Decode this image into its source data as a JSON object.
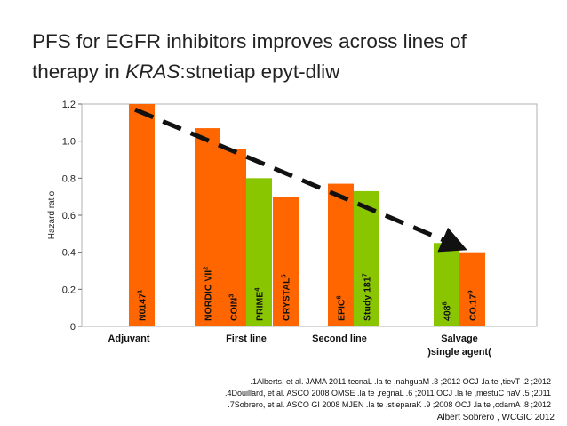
{
  "slide": {
    "title_line1": "PFS for EGFR inhibitors improves across lines of",
    "title_line2_prefix": "therapy in ",
    "title_line2_italic": "KRAS",
    "title_line2_suffix": ":stnetiap epyt-dliw",
    "references": [
      ".1Alberts, et al. JAMA  2011 tecnaL .la te ,nahguaM .3 ;2012 OCJ .la te ,tievT .2 ;2012",
      ".4Douillard, et al. ASCO  2008 OMSE .la te ,regnaL .6 ;2011 OCJ .la te ,mestuC naV .5 ;2011",
      ".7Sobrero, et al. ASCO GI 2008 MJEN .la te ,stieparaK .9 ;2008 OCJ .la te ,odamA .8 ;2012"
    ],
    "credit": "Albert Sobrero , WCGIC 2012"
  },
  "chart_data": {
    "type": "bar",
    "ylabel": "Hazard ratio",
    "ylim": [
      0,
      1.2
    ],
    "yticks": [
      "0",
      "0.2",
      "0.4",
      "0.6",
      "0.8",
      "1.0",
      "1.2"
    ],
    "groups": [
      "Adjuvant",
      "First line",
      "Second line",
      "Salvage\n)single agent("
    ],
    "colors": {
      "chemo_combo": "#ff6600",
      "single_agent": "#8ac600",
      "arrow": "#111111"
    },
    "bars": [
      {
        "label": "N0147",
        "sup": "1",
        "value": 1.2,
        "group": 0,
        "color": "#ff6600"
      },
      {
        "label": "NORDIC VII",
        "sup": "2",
        "value": 1.07,
        "group": 1,
        "color": "#ff6600"
      },
      {
        "label": "COIN",
        "sup": "3",
        "value": 0.96,
        "group": 1,
        "color": "#ff6600"
      },
      {
        "label": "PRIME",
        "sup": "4",
        "value": 0.8,
        "group": 1,
        "color": "#8ac600"
      },
      {
        "label": "CRYSTAL",
        "sup": "5",
        "value": 0.7,
        "group": 1,
        "color": "#ff6600"
      },
      {
        "label": "EPIC",
        "sup": "6",
        "value": 0.77,
        "group": 2,
        "color": "#ff6600"
      },
      {
        "label": "Study 181",
        "sup": "7",
        "value": 0.73,
        "group": 2,
        "color": "#8ac600"
      },
      {
        "label": "408",
        "sup": "8",
        "value": 0.45,
        "group": 3,
        "color": "#8ac600"
      },
      {
        "label": "CO.17",
        "sup": "9",
        "value": 0.4,
        "group": 3,
        "color": "#ff6600"
      }
    ],
    "trend_arrow": {
      "from": 1.18,
      "to": 0.43,
      "style": "dashed"
    },
    "grid": false
  }
}
